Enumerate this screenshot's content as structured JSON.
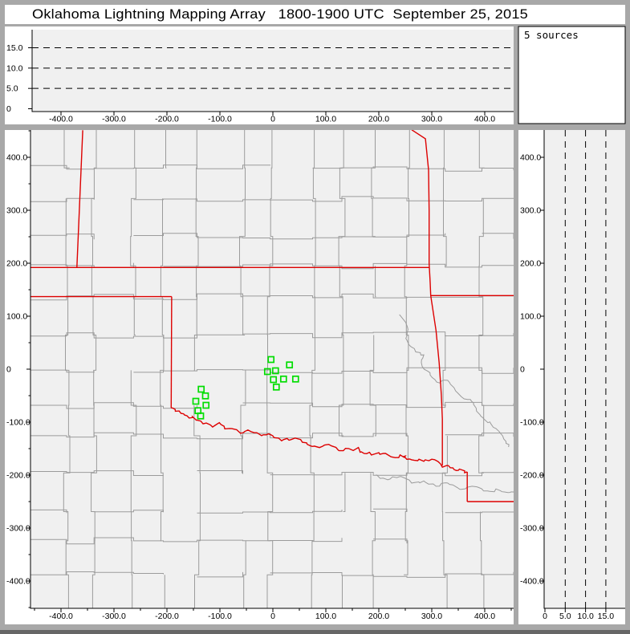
{
  "title": "Oklahoma Lightning Mapping Array   1800-1900 UTC  September 25, 2015",
  "sources_box": {
    "label": "5 sources"
  },
  "colors": {
    "frame_gray": "#a8a8a8",
    "plot_background": "#f0f0f0",
    "county_line": "#9b9b9b",
    "state_border_red": "#dd0000",
    "station_green": "#00dd00",
    "axis_black": "#000000"
  },
  "chart_data": {
    "type": "scatter",
    "title": "Oklahoma Lightning Mapping Array   1800-1900 UTC  September 25, 2015",
    "sources_label": "5 sources",
    "panels": {
      "top_altitude_vs_ew": {
        "role": "altitude (km) vs east-west distance (km)",
        "xlim": [
          -455,
          455
        ],
        "ylim": [
          0,
          19.5
        ],
        "grid": "dashed horizontal lines",
        "dashed_altitudes_km": [
          5,
          10,
          15
        ],
        "x_ticks": [
          {
            "v": -400,
            "label": "-400.0"
          },
          {
            "v": -300,
            "label": "-300.0"
          },
          {
            "v": -200,
            "label": "-200.0"
          },
          {
            "v": -100,
            "label": "-100.0"
          },
          {
            "v": 0,
            "label": "0"
          },
          {
            "v": 100,
            "label": "100.0"
          },
          {
            "v": 200,
            "label": "200.0"
          },
          {
            "v": 300,
            "label": "300.0"
          },
          {
            "v": 400,
            "label": "400.0"
          }
        ],
        "y_ticks": [
          {
            "v": 15,
            "label": "15.0"
          },
          {
            "v": 10,
            "label": "10.0"
          },
          {
            "v": 5,
            "label": "5.0"
          },
          {
            "v": 0,
            "label": "0"
          }
        ],
        "points": []
      },
      "plan_view_map": {
        "role": "plan view map, distances in km from network center",
        "xlim": [
          -455,
          455
        ],
        "ylim": [
          -455,
          455
        ],
        "x_ticks": [
          {
            "v": -400,
            "label": "-400.0"
          },
          {
            "v": -300,
            "label": "-300.0"
          },
          {
            "v": -200,
            "label": "-200.0"
          },
          {
            "v": -100,
            "label": "-100.0"
          },
          {
            "v": 0,
            "label": "0"
          },
          {
            "v": 100,
            "label": "100.0"
          },
          {
            "v": 200,
            "label": "200.0"
          },
          {
            "v": 300,
            "label": "300.0"
          },
          {
            "v": 400,
            "label": "400.0"
          }
        ],
        "y_ticks": [
          {
            "v": 400,
            "label": "400.0"
          },
          {
            "v": 300,
            "label": "300.0"
          },
          {
            "v": 200,
            "label": "200.0"
          },
          {
            "v": 100,
            "label": "100.0"
          },
          {
            "v": 0,
            "label": "0"
          },
          {
            "v": -100,
            "label": "-100.0"
          },
          {
            "v": -200,
            "label": "-200.0"
          },
          {
            "v": -300,
            "label": "-300.0"
          },
          {
            "v": -400,
            "label": "-400.0"
          }
        ],
        "minor_tick_step_km": 50,
        "stations_km": [
          [
            -3.5,
            18.2
          ],
          [
            31.4,
            8.0
          ],
          [
            -10.2,
            -4.5
          ],
          [
            5.0,
            -3.0
          ],
          [
            1.1,
            -19.7
          ],
          [
            20.2,
            -18.6
          ],
          [
            42.9,
            -18.6
          ],
          [
            6.5,
            -33.8
          ],
          [
            -135.3,
            -37.9
          ],
          [
            -127.3,
            -50.5
          ],
          [
            -145.5,
            -60.6
          ],
          [
            -126.2,
            -68.2
          ],
          [
            -141.4,
            -78.3
          ],
          [
            -136.4,
            -88.3
          ]
        ],
        "state_borders_km": {
          "kansas_south_37N": [
            [
              -458,
              192
            ],
            [
              295,
              192
            ]
          ],
          "colorado_kansas_102W": [
            [
              -359,
              451
            ],
            [
              -370,
              192
            ]
          ],
          "ok_panhandle_south_36_5N": [
            [
              -458,
              137
            ],
            [
              -191,
              137
            ]
          ],
          "texas_oklahoma_100W": [
            [
              -191,
              137
            ],
            [
              -192,
              -73
            ]
          ],
          "red_river": [
            [
              -192,
              -73
            ],
            [
              -177,
              -79
            ],
            [
              -162,
              -88
            ],
            [
              -147,
              -94
            ],
            [
              -136,
              -98
            ],
            [
              -117,
              -106
            ],
            [
              -101,
              -101
            ],
            [
              -82,
              -112
            ],
            [
              -61,
              -121
            ],
            [
              -41,
              -118
            ],
            [
              -18,
              -124
            ],
            [
              0,
              -126
            ],
            [
              20,
              -133
            ],
            [
              42,
              -130
            ],
            [
              65,
              -142
            ],
            [
              88,
              -148
            ],
            [
              111,
              -145
            ],
            [
              133,
              -154
            ],
            [
              156,
              -151
            ],
            [
              167,
              -156
            ],
            [
              186,
              -162
            ],
            [
              209,
              -159
            ],
            [
              232,
              -167
            ],
            [
              250,
              -164
            ],
            [
              262,
              -171
            ],
            [
              285,
              -174
            ],
            [
              300,
              -170
            ],
            [
              320,
              -185
            ],
            [
              335,
              -186
            ],
            [
              350,
              -191
            ],
            [
              367,
              -194
            ]
          ],
          "missouri_east_arkansas_line": [
            [
              262,
              452
            ],
            [
              288,
              435
            ],
            [
              294,
              376
            ],
            [
              295,
              300
            ],
            [
              295,
              200
            ],
            [
              297,
              164
            ],
            [
              298,
              139
            ],
            [
              308,
              73
            ],
            [
              314,
              12
            ],
            [
              318,
              -48
            ],
            [
              320,
              -94
            ],
            [
              320,
              -182
            ]
          ],
          "missouri_arkansas_36_5N": [
            [
              298,
              139
            ],
            [
              458,
              139
            ]
          ],
          "texas_arkansas_94W": [
            [
              367,
              -194
            ],
            [
              367,
              -250
            ]
          ],
          "louisiana_33N": [
            [
              367,
              -250
            ],
            [
              458,
              -250
            ]
          ]
        },
        "rivers_km": [
          [
            [
              239,
              103
            ],
            [
              254,
              80
            ],
            [
              251,
              58
            ],
            [
              267,
              39
            ],
            [
              285,
              27
            ],
            [
              282,
              5
            ],
            [
              297,
              -11
            ],
            [
              315,
              -26
            ],
            [
              330,
              -21
            ],
            [
              345,
              -41
            ],
            [
              361,
              -56
            ],
            [
              379,
              -64
            ],
            [
              391,
              -86
            ],
            [
              406,
              -101
            ],
            [
              421,
              -112
            ],
            [
              436,
              -132
            ],
            [
              445,
              -147
            ]
          ],
          [
            [
              194,
              -200
            ],
            [
              217,
              -209
            ],
            [
              239,
              -203
            ],
            [
              262,
              -215
            ],
            [
              285,
              -211
            ],
            [
              308,
              -221
            ],
            [
              330,
              -215
            ],
            [
              353,
              -227
            ],
            [
              376,
              -221
            ],
            [
              398,
              -230
            ],
            [
              421,
              -226
            ],
            [
              444,
              -233
            ],
            [
              455,
              -230
            ]
          ]
        ]
      },
      "right_altitude_vs_ns": {
        "role": "north-south distance (km) vs altitude (km)",
        "xlim": [
          0,
          19.8
        ],
        "ylim": [
          -455,
          455
        ],
        "grid": "dashed vertical lines",
        "dashed_altitudes_km": [
          5,
          10,
          15
        ],
        "x_ticks": [
          {
            "v": 0,
            "label": "0"
          },
          {
            "v": 5,
            "label": "5.0"
          },
          {
            "v": 10,
            "label": "10.0"
          },
          {
            "v": 15,
            "label": "15.0"
          }
        ],
        "y_ticks": [
          {
            "v": 400,
            "label": "400.0"
          },
          {
            "v": 300,
            "label": "300.0"
          },
          {
            "v": 200,
            "label": "200.0"
          },
          {
            "v": 100,
            "label": "100.0"
          },
          {
            "v": 0,
            "label": "0"
          },
          {
            "v": -100,
            "label": "-100.0"
          },
          {
            "v": -200,
            "label": "-200.0"
          },
          {
            "v": -300,
            "label": "-300.0"
          },
          {
            "v": -400,
            "label": "-400.0"
          }
        ],
        "points": []
      }
    }
  }
}
